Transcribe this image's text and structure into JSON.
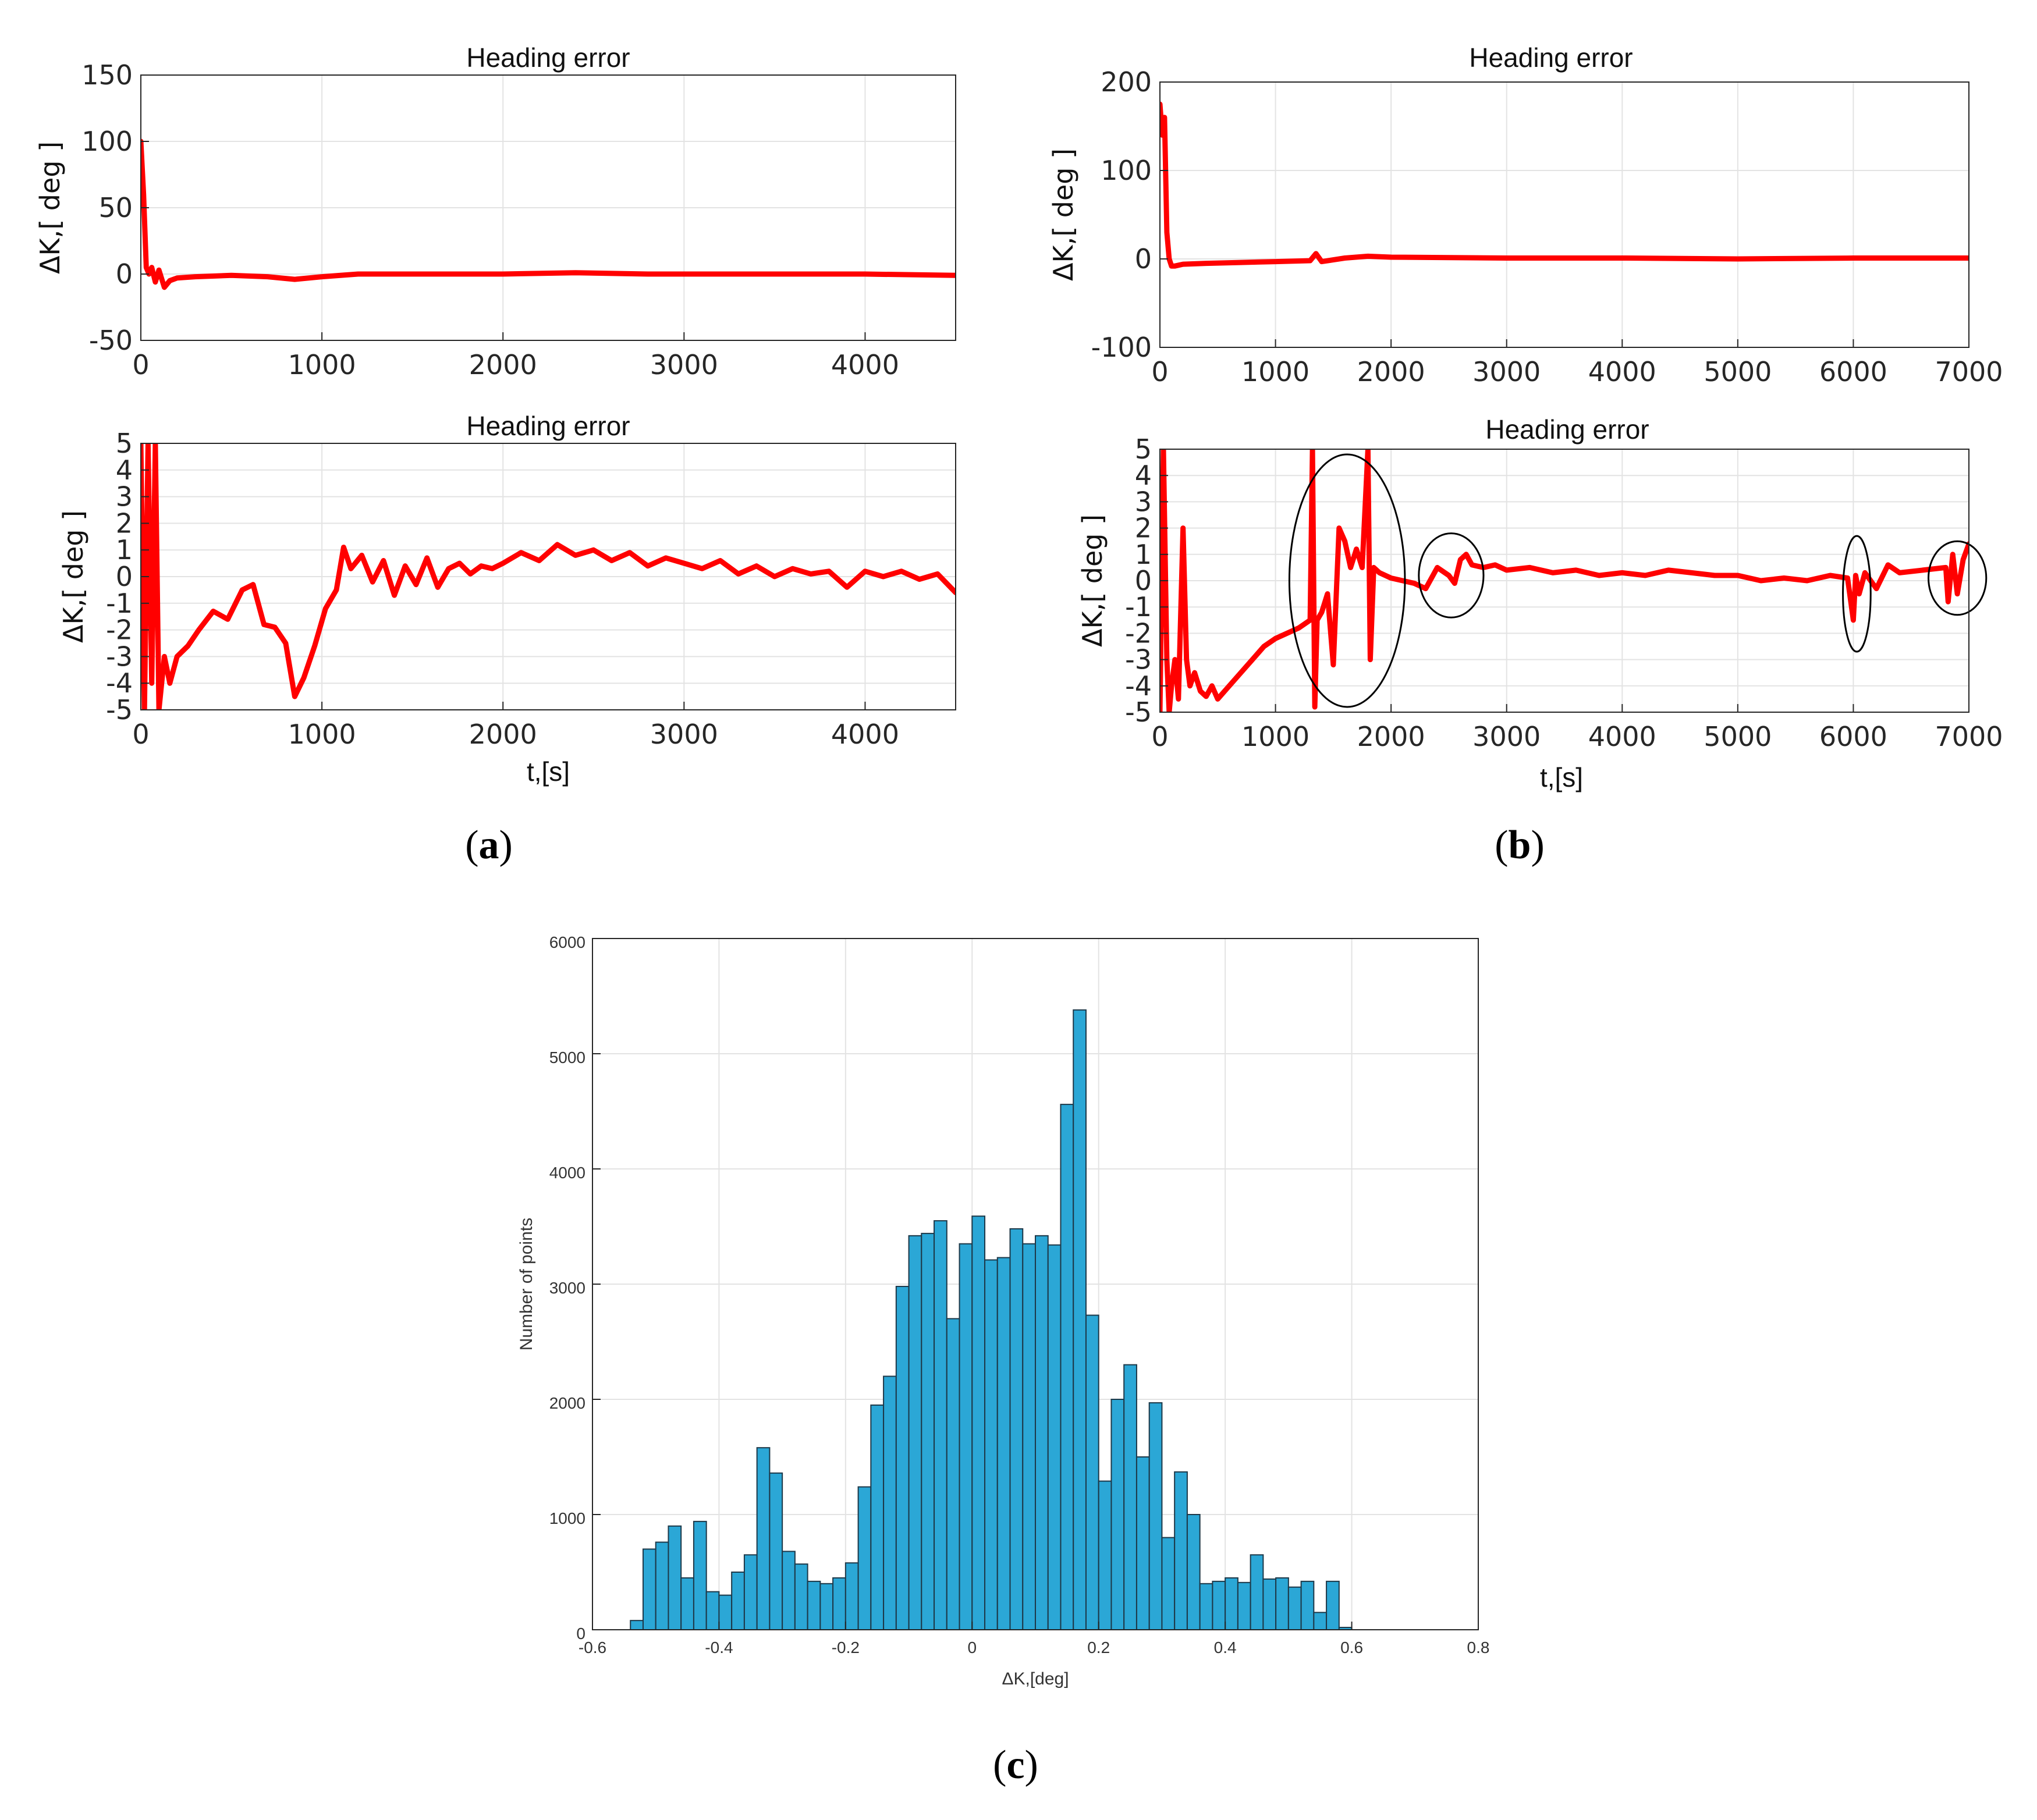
{
  "colors": {
    "line": "#ff0000",
    "bar_fill": "#2ba7d6",
    "bar_edge": "#1d3848",
    "grid": "#e3e3e3",
    "axis": "#262626",
    "ellipse": "#000000"
  },
  "captions": {
    "a": "a",
    "b": "b",
    "c": "c"
  },
  "chart_data": [
    {
      "id": "a_top",
      "type": "line",
      "title": "Heading error",
      "ylabel": "ΔK,[ deg ]",
      "xlabel": "",
      "xlim": [
        0,
        4500
      ],
      "ylim": [
        -50,
        150
      ],
      "xticks": [
        "0",
        "1000",
        "2000",
        "3000",
        "4000"
      ],
      "yticks": [
        "-50",
        "0",
        "50",
        "100",
        "150"
      ],
      "xtick_values": [
        0,
        1000,
        2000,
        3000,
        4000
      ],
      "ytick_values": [
        -50,
        0,
        50,
        100,
        150
      ],
      "grid": true,
      "series": [
        {
          "name": "Heading error",
          "x": [
            0,
            15,
            30,
            45,
            60,
            80,
            100,
            130,
            160,
            200,
            300,
            500,
            700,
            850,
            1000,
            1200,
            1500,
            2000,
            2400,
            2800,
            3200,
            3600,
            4000,
            4500
          ],
          "y": [
            100,
            60,
            5,
            0,
            5,
            -6,
            3,
            -10,
            -5,
            -3,
            -2,
            -1,
            -2,
            -4,
            -2,
            0,
            0,
            0,
            1,
            0,
            0,
            0,
            0,
            -1
          ]
        }
      ]
    },
    {
      "id": "a_bottom",
      "type": "line",
      "title": "Heading error",
      "ylabel": "ΔK,[ deg ]",
      "xlabel": "t,[s]",
      "xlim": [
        0,
        4500
      ],
      "ylim": [
        -5,
        5
      ],
      "xticks": [
        "0",
        "1000",
        "2000",
        "3000",
        "4000"
      ],
      "yticks": [
        "-5",
        "-4",
        "-3",
        "-2",
        "-1",
        "0",
        "1",
        "2",
        "3",
        "4",
        "5"
      ],
      "xtick_values": [
        0,
        1000,
        2000,
        3000,
        4000
      ],
      "ytick_values": [
        -5,
        -4,
        -3,
        -2,
        -1,
        0,
        1,
        2,
        3,
        4,
        5
      ],
      "grid": true,
      "series": [
        {
          "name": "Heading error",
          "x": [
            0,
            20,
            40,
            60,
            80,
            100,
            130,
            160,
            200,
            260,
            320,
            400,
            480,
            560,
            620,
            680,
            740,
            800,
            850,
            900,
            960,
            1020,
            1080,
            1120,
            1160,
            1220,
            1280,
            1340,
            1400,
            1460,
            1520,
            1580,
            1640,
            1700,
            1760,
            1820,
            1880,
            1940,
            2000,
            2100,
            2200,
            2300,
            2400,
            2500,
            2600,
            2700,
            2800,
            2900,
            3000,
            3100,
            3200,
            3300,
            3400,
            3500,
            3600,
            3700,
            3800,
            3900,
            4000,
            4100,
            4200,
            4300,
            4400,
            4500
          ],
          "y": [
            5,
            -5,
            5,
            -4,
            5,
            -5,
            -3,
            -4,
            -3,
            -2.6,
            -2,
            -1.3,
            -1.6,
            -0.5,
            -0.3,
            -1.8,
            -1.9,
            -2.5,
            -4.5,
            -3.8,
            -2.6,
            -1.2,
            -0.5,
            1.1,
            0.3,
            0.8,
            -0.2,
            0.6,
            -0.7,
            0.4,
            -0.3,
            0.7,
            -0.4,
            0.3,
            0.5,
            0.1,
            0.4,
            0.3,
            0.5,
            0.9,
            0.6,
            1.2,
            0.8,
            1.0,
            0.6,
            0.9,
            0.4,
            0.7,
            0.5,
            0.3,
            0.6,
            0.1,
            0.4,
            0.0,
            0.3,
            0.1,
            0.2,
            -0.4,
            0.2,
            0.0,
            0.2,
            -0.1,
            0.1,
            -0.6
          ]
        }
      ]
    },
    {
      "id": "b_top",
      "type": "line",
      "title": "Heading error",
      "ylabel": "ΔK,[ deg ]",
      "xlabel": "",
      "xlim": [
        0,
        7000
      ],
      "ylim": [
        -100,
        200
      ],
      "xticks": [
        "0",
        "1000",
        "2000",
        "3000",
        "4000",
        "5000",
        "6000",
        "7000"
      ],
      "yticks": [
        "-100",
        "0",
        "100",
        "200"
      ],
      "xtick_values": [
        0,
        1000,
        2000,
        3000,
        4000,
        5000,
        6000,
        7000
      ],
      "ytick_values": [
        -100,
        0,
        100,
        200
      ],
      "grid": true,
      "series": [
        {
          "name": "Heading error",
          "x": [
            0,
            20,
            40,
            60,
            80,
            100,
            130,
            200,
            400,
            700,
            1000,
            1300,
            1350,
            1400,
            1600,
            1800,
            2000,
            3000,
            4000,
            5000,
            6000,
            7000
          ],
          "y": [
            175,
            140,
            160,
            30,
            0,
            -8,
            -8,
            -6,
            -5,
            -4,
            -3,
            -2,
            6,
            -3,
            1,
            3,
            2,
            1,
            1,
            0,
            1,
            1
          ]
        }
      ]
    },
    {
      "id": "b_bottom",
      "type": "line",
      "title": "Heading error",
      "ylabel": "ΔK,[ deg ]",
      "xlabel": "t,[s]",
      "xlim": [
        0,
        7000
      ],
      "ylim": [
        -5,
        5
      ],
      "xticks": [
        "0",
        "1000",
        "2000",
        "3000",
        "4000",
        "5000",
        "6000",
        "7000"
      ],
      "yticks": [
        "-5",
        "-4",
        "-3",
        "-2",
        "-1",
        "0",
        "1",
        "2",
        "3",
        "4",
        "5"
      ],
      "xtick_values": [
        0,
        1000,
        2000,
        3000,
        4000,
        5000,
        6000,
        7000
      ],
      "ytick_values": [
        -5,
        -4,
        -3,
        -2,
        -1,
        0,
        1,
        2,
        3,
        4,
        5
      ],
      "grid": true,
      "series": [
        {
          "name": "Heading error",
          "x": [
            0,
            30,
            60,
            80,
            100,
            130,
            160,
            200,
            230,
            260,
            300,
            350,
            400,
            450,
            500,
            600,
            700,
            800,
            900,
            1000,
            1100,
            1200,
            1300,
            1320,
            1340,
            1360,
            1400,
            1450,
            1500,
            1550,
            1600,
            1650,
            1700,
            1750,
            1800,
            1820,
            1850,
            1900,
            2000,
            2100,
            2200,
            2300,
            2400,
            2500,
            2550,
            2600,
            2650,
            2700,
            2800,
            2900,
            3000,
            3200,
            3400,
            3600,
            3800,
            4000,
            4200,
            4400,
            4600,
            4800,
            5000,
            5200,
            5400,
            5600,
            5800,
            5950,
            6000,
            6020,
            6050,
            6100,
            6200,
            6300,
            6400,
            6600,
            6800,
            6820,
            6860,
            6900,
            6950,
            7000
          ],
          "y": [
            -5,
            5,
            -3,
            -5,
            -4,
            -3,
            -4.5,
            2,
            -3,
            -4,
            -3.5,
            -4.2,
            -4.4,
            -4.0,
            -4.5,
            -4,
            -3.5,
            -3,
            -2.5,
            -2.2,
            -2,
            -1.8,
            -1.5,
            5,
            -4.8,
            -1.5,
            -1.2,
            -0.5,
            -3.2,
            2,
            1.5,
            0.5,
            1.2,
            0.5,
            5,
            -3.0,
            0.5,
            0.3,
            0.1,
            0,
            -0.1,
            -0.3,
            0.5,
            0.2,
            -0.1,
            0.8,
            1.0,
            0.6,
            0.5,
            0.6,
            0.4,
            0.5,
            0.3,
            0.4,
            0.2,
            0.3,
            0.2,
            0.4,
            0.3,
            0.2,
            0.2,
            0.0,
            0.1,
            0.0,
            0.2,
            0.1,
            -1.5,
            0.2,
            -0.5,
            0.3,
            -0.3,
            0.6,
            0.3,
            0.4,
            0.5,
            -0.8,
            1.0,
            -0.5,
            0.8,
            1.4
          ]
        }
      ],
      "annotations": [
        {
          "type": "ellipse",
          "cx": 1620,
          "cy": 0,
          "rx_data": 500,
          "ry_data": 4.8
        },
        {
          "type": "ellipse",
          "cx": 2520,
          "cy": 0.2,
          "rx_data": 280,
          "ry_data": 1.6
        },
        {
          "type": "ellipse",
          "cx": 6030,
          "cy": -0.5,
          "rx_data": 120,
          "ry_data": 2.2
        },
        {
          "type": "ellipse",
          "cx": 6900,
          "cy": 0.1,
          "rx_data": 250,
          "ry_data": 1.4
        }
      ]
    },
    {
      "id": "c",
      "type": "bar",
      "title": "",
      "ylabel": "Number of points",
      "xlabel": "ΔK,[deg]",
      "xlim": [
        -0.6,
        0.8
      ],
      "ylim": [
        0,
        6000
      ],
      "xticks": [
        "-0.6",
        "-0.4",
        "-0.2",
        "0",
        "0.2",
        "0.4",
        "0.6",
        "0.8"
      ],
      "yticks": [
        "0",
        "1000",
        "2000",
        "3000",
        "4000",
        "5000",
        "6000"
      ],
      "xtick_values": [
        -0.6,
        -0.4,
        -0.2,
        0,
        0.2,
        0.4,
        0.6,
        0.8
      ],
      "ytick_values": [
        0,
        1000,
        2000,
        3000,
        4000,
        5000,
        6000
      ],
      "grid": true,
      "bin_start": -0.54,
      "bin_width": 0.02,
      "values": [
        80,
        700,
        760,
        900,
        450,
        940,
        330,
        300,
        500,
        650,
        1580,
        1360,
        680,
        570,
        420,
        400,
        450,
        580,
        1240,
        1950,
        2200,
        2980,
        3420,
        3440,
        3550,
        2700,
        3350,
        3590,
        3210,
        3230,
        3480,
        3350,
        3420,
        3340,
        4560,
        5380,
        2730,
        1290,
        2000,
        2300,
        1500,
        1970,
        800,
        1370,
        1000,
        400,
        420,
        450,
        410,
        650,
        440,
        450,
        370,
        420,
        150,
        420,
        20
      ]
    }
  ]
}
